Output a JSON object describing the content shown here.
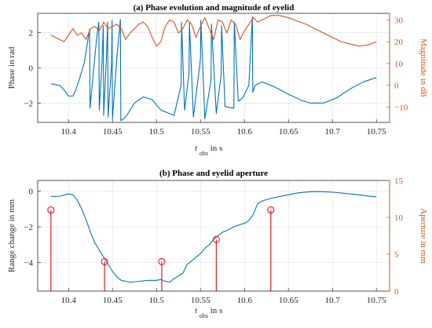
{
  "chart_data": [
    {
      "type": "line",
      "title": "(a) Phase evolution and magnitude of eyelid",
      "xlabel": "t_obs in s",
      "xlabel_main": "t",
      "xlabel_sub": "obs",
      "xlabel_unit": "in s",
      "xlim": [
        10.365,
        10.765
      ],
      "x_ticks": [
        10.4,
        10.45,
        10.5,
        10.55,
        10.6,
        10.65,
        10.7,
        10.75
      ],
      "ylabel_left": "Phase in rad",
      "ylim_left": [
        -3.1,
        3.1
      ],
      "y_ticks_left": [
        -2,
        0,
        2
      ],
      "ylabel_right": "Magnitude in dB",
      "ylim_right": [
        -17,
        33
      ],
      "y_ticks_right": [
        -10,
        0,
        10,
        20,
        30
      ],
      "grid": true,
      "series": [
        {
          "axis": "left",
          "color": "#0072bd",
          "x": [
            10.38,
            10.39,
            10.395,
            10.4,
            10.405,
            10.408,
            10.412,
            10.418,
            10.424,
            10.4245,
            10.428,
            10.432,
            10.4345,
            10.435,
            10.438,
            10.4395,
            10.44,
            10.443,
            10.4445,
            10.445,
            10.449,
            10.4495,
            10.45,
            10.455,
            10.459,
            10.4595,
            10.465,
            10.475,
            10.485,
            10.495,
            10.505,
            10.515,
            10.52,
            10.528,
            10.5285,
            10.532,
            10.537,
            10.5375,
            10.542,
            10.55,
            10.5505,
            10.555,
            10.562,
            10.5625,
            10.568,
            10.5735,
            10.574,
            10.578,
            10.588,
            10.5885,
            10.593,
            10.598,
            10.605,
            10.609,
            10.6095,
            10.612,
            10.62,
            10.635,
            10.65,
            10.665,
            10.675,
            10.69,
            10.705,
            10.72,
            10.735,
            10.75
          ],
          "y": [
            -0.9,
            -1.0,
            -1.25,
            -1.6,
            -1.6,
            -1.3,
            -0.7,
            0.3,
            2.2,
            -2.3,
            -0.4,
            1.7,
            2.6,
            -2.4,
            0.2,
            2.4,
            -2.7,
            0.5,
            2.6,
            -2.8,
            0.2,
            2.7,
            -2.9,
            0.6,
            2.75,
            -3.0,
            -2.8,
            -2.0,
            -1.65,
            -1.8,
            -2.4,
            -2.6,
            -2.7,
            -1.0,
            2.6,
            -2.4,
            -0.3,
            2.55,
            -2.8,
            0.5,
            2.7,
            -2.9,
            -0.7,
            2.5,
            -2.6,
            -0.4,
            2.4,
            -2.2,
            -2.3,
            2.6,
            -1.9,
            -1.7,
            -1.0,
            2.9,
            -1.4,
            -1.0,
            -0.8,
            -1.1,
            -1.5,
            -1.85,
            -2.0,
            -2.0,
            -1.7,
            -1.2,
            -0.8,
            -0.55
          ]
        },
        {
          "axis": "right",
          "color": "#d95319",
          "x": [
            10.38,
            10.385,
            10.39,
            10.395,
            10.4,
            10.405,
            10.41,
            10.415,
            10.42,
            10.425,
            10.43,
            10.435,
            10.44,
            10.445,
            10.45,
            10.455,
            10.46,
            10.465,
            10.47,
            10.475,
            10.48,
            10.485,
            10.49,
            10.495,
            10.5,
            10.505,
            10.51,
            10.515,
            10.52,
            10.525,
            10.53,
            10.535,
            10.54,
            10.545,
            10.55,
            10.555,
            10.56,
            10.565,
            10.57,
            10.575,
            10.58,
            10.585,
            10.59,
            10.595,
            10.6,
            10.605,
            10.61,
            10.615,
            10.62,
            10.63,
            10.64,
            10.65,
            10.66,
            10.67,
            10.68,
            10.69,
            10.7,
            10.71,
            10.72,
            10.73,
            10.74,
            10.75
          ],
          "y": [
            23,
            22,
            21,
            20,
            23,
            26,
            23,
            24,
            21,
            26,
            27,
            25,
            29,
            26,
            27,
            28,
            26,
            21,
            24,
            26,
            28,
            29,
            27,
            22,
            18,
            20,
            27,
            30,
            29,
            24,
            26,
            30,
            28,
            22,
            27,
            31,
            26,
            21,
            30,
            29,
            24,
            30,
            28,
            21,
            25,
            28,
            31,
            29,
            30,
            32,
            32,
            31,
            29.5,
            28,
            26,
            24,
            22,
            20,
            19,
            18,
            18.5,
            20
          ]
        }
      ]
    },
    {
      "type": "line",
      "title": "(b) Phase and eyelid aperture",
      "xlabel": "t_obs in s",
      "xlabel_main": "t",
      "xlabel_sub": "obs",
      "xlabel_unit": "in s",
      "xlim": [
        10.365,
        10.765
      ],
      "x_ticks": [
        10.4,
        10.45,
        10.5,
        10.55,
        10.6,
        10.65,
        10.7,
        10.75
      ],
      "ylabel_left": "Range change in mm",
      "ylim_left": [
        -5.6,
        0.6
      ],
      "y_ticks_left": [
        -4,
        -2,
        0
      ],
      "ylabel_right": "Aperture in mm",
      "ylim_right": [
        0,
        15
      ],
      "y_ticks_right": [
        0,
        5,
        10,
        15
      ],
      "grid": true,
      "series": [
        {
          "axis": "left",
          "type": "line",
          "color": "#0072bd",
          "x": [
            10.38,
            10.39,
            10.4,
            10.405,
            10.41,
            10.415,
            10.42,
            10.425,
            10.43,
            10.435,
            10.44,
            10.445,
            10.45,
            10.455,
            10.46,
            10.47,
            10.48,
            10.49,
            10.5,
            10.505,
            10.51,
            10.515,
            10.52,
            10.53,
            10.535,
            10.54,
            10.545,
            10.55,
            10.555,
            10.56,
            10.565,
            10.57,
            10.575,
            10.58,
            10.59,
            10.6,
            10.605,
            10.61,
            10.615,
            10.62,
            10.63,
            10.64,
            10.65,
            10.66,
            10.67,
            10.68,
            10.69,
            10.7,
            10.71,
            10.72,
            10.73,
            10.74,
            10.75
          ],
          "y": [
            -0.3,
            -0.28,
            -0.15,
            -0.2,
            -0.5,
            -1.0,
            -1.6,
            -2.3,
            -2.9,
            -3.3,
            -3.7,
            -4.1,
            -4.5,
            -4.8,
            -5.0,
            -5.1,
            -5.05,
            -5.0,
            -5.0,
            -4.95,
            -5.05,
            -5.1,
            -4.9,
            -4.6,
            -4.1,
            -3.9,
            -3.7,
            -3.5,
            -3.2,
            -3.0,
            -2.7,
            -2.5,
            -2.3,
            -2.2,
            -1.95,
            -1.8,
            -1.65,
            -1.3,
            -0.7,
            -0.55,
            -0.4,
            -0.3,
            -0.2,
            -0.1,
            -0.05,
            -0.02,
            -0.03,
            -0.06,
            -0.1,
            -0.15,
            -0.2,
            -0.27,
            -0.32
          ]
        },
        {
          "axis": "right",
          "type": "stem",
          "color": "#e41a1c",
          "x": [
            10.38,
            10.441,
            10.506,
            10.568,
            10.63
          ],
          "y": [
            11,
            4,
            4,
            7,
            11
          ]
        }
      ]
    }
  ]
}
